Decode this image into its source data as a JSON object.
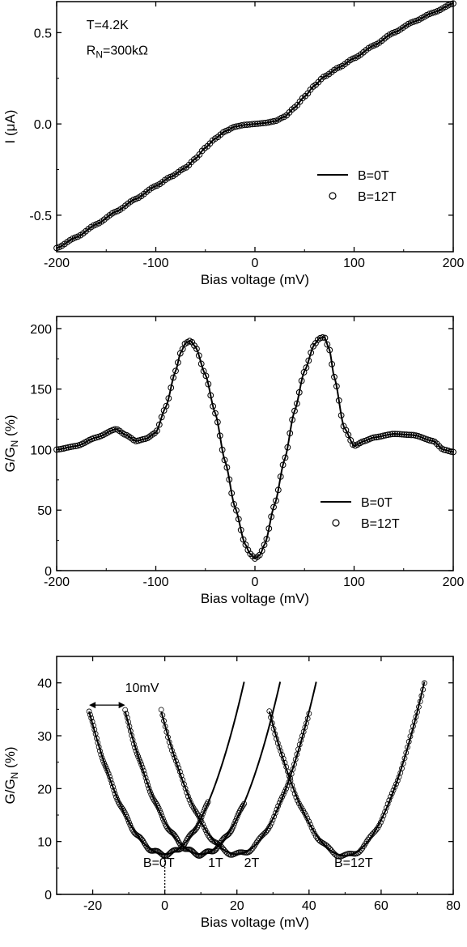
{
  "chart_data": [
    {
      "type": "line",
      "xlabel": "Bias voltage (mV)",
      "ylabel": "I (μA)",
      "xlim": [
        -200,
        200
      ],
      "ylim": [
        -0.7,
        0.67
      ],
      "xticks": [
        -200,
        -100,
        0,
        100,
        200
      ],
      "xtick_labels": [
        "-200",
        "-100",
        "0",
        "100",
        "200"
      ],
      "yticks": [
        -0.5,
        0.0,
        0.5
      ],
      "ytick_labels": [
        "-0.5",
        "0.0",
        "0.5"
      ],
      "annotations": [
        {
          "text": "T=4.2K",
          "x": -170,
          "y": 0.52
        },
        {
          "text_main": "R",
          "text_sub": "N",
          "text_rest": "=300kΩ",
          "x": -170,
          "y": 0.38
        }
      ],
      "legend_position": "lower-right",
      "legend": [
        {
          "label": "B=0T",
          "style": "line"
        },
        {
          "label": "B=12T",
          "style": "marker"
        }
      ],
      "series": [
        {
          "name": "B=0T",
          "style": "line",
          "x": [
            -200,
            -180,
            -160,
            -140,
            -120,
            -100,
            -85,
            -70,
            -60,
            -50,
            -40,
            -30,
            -20,
            -10,
            0,
            10,
            20,
            30,
            40,
            50,
            60,
            70,
            85,
            100,
            120,
            140,
            160,
            180,
            200
          ],
          "y": [
            -0.68,
            -0.62,
            -0.55,
            -0.48,
            -0.41,
            -0.34,
            -0.29,
            -0.24,
            -0.19,
            -0.13,
            -0.08,
            -0.04,
            -0.015,
            -0.005,
            0.0,
            0.005,
            0.015,
            0.04,
            0.09,
            0.15,
            0.21,
            0.26,
            0.31,
            0.36,
            0.43,
            0.5,
            0.56,
            0.61,
            0.66
          ]
        },
        {
          "name": "B=12T",
          "style": "marker",
          "x": [
            -200,
            -180,
            -160,
            -140,
            -120,
            -100,
            -85,
            -70,
            -60,
            -50,
            -40,
            -30,
            -20,
            -10,
            0,
            10,
            20,
            30,
            40,
            50,
            60,
            70,
            85,
            100,
            120,
            140,
            160,
            180,
            200
          ],
          "y": [
            -0.68,
            -0.62,
            -0.55,
            -0.48,
            -0.41,
            -0.34,
            -0.29,
            -0.24,
            -0.19,
            -0.13,
            -0.08,
            -0.04,
            -0.015,
            -0.005,
            0.0,
            0.005,
            0.015,
            0.04,
            0.09,
            0.15,
            0.21,
            0.26,
            0.31,
            0.36,
            0.43,
            0.5,
            0.56,
            0.61,
            0.66
          ]
        }
      ]
    },
    {
      "type": "line",
      "xlabel": "Bias voltage (mV)",
      "ylabel_main": "G/G",
      "ylabel_sub": "N",
      "ylabel_rest": " (%)",
      "xlim": [
        -200,
        200
      ],
      "ylim": [
        0,
        210
      ],
      "xticks": [
        -200,
        -100,
        0,
        100,
        200
      ],
      "xtick_labels": [
        "-200",
        "-100",
        "0",
        "100",
        "200"
      ],
      "yticks": [
        0,
        50,
        100,
        150,
        200
      ],
      "ytick_labels": [
        "0",
        "50",
        "100",
        "150",
        "200"
      ],
      "legend_position": "lower-right",
      "legend": [
        {
          "label": "B=0T",
          "style": "line"
        },
        {
          "label": "B=12T",
          "style": "marker"
        }
      ],
      "series": [
        {
          "name": "B=0T",
          "style": "line",
          "x": [
            -200,
            -180,
            -160,
            -140,
            -130,
            -120,
            -110,
            -100,
            -90,
            -80,
            -75,
            -70,
            -65,
            -60,
            -50,
            -40,
            -30,
            -20,
            -10,
            -5,
            0,
            5,
            10,
            20,
            30,
            40,
            50,
            60,
            65,
            70,
            75,
            80,
            90,
            100,
            110,
            120,
            140,
            160,
            180,
            190,
            200
          ],
          "y": [
            100,
            103,
            110,
            117,
            112,
            107,
            109,
            114,
            135,
            165,
            180,
            188,
            190,
            185,
            162,
            130,
            90,
            52,
            22,
            14,
            10,
            13,
            22,
            55,
            92,
            132,
            165,
            187,
            192,
            193,
            183,
            160,
            118,
            103,
            107,
            110,
            113,
            112,
            107,
            100,
            98
          ]
        },
        {
          "name": "B=12T",
          "style": "marker",
          "x": [
            -200,
            -180,
            -160,
            -140,
            -130,
            -120,
            -110,
            -100,
            -90,
            -80,
            -75,
            -70,
            -65,
            -60,
            -50,
            -40,
            -30,
            -20,
            -10,
            -5,
            0,
            5,
            10,
            20,
            30,
            40,
            50,
            60,
            65,
            70,
            75,
            80,
            90,
            100,
            110,
            120,
            140,
            160,
            180,
            190,
            200
          ],
          "y": [
            100,
            103,
            110,
            117,
            112,
            107,
            109,
            114,
            135,
            165,
            180,
            188,
            190,
            185,
            162,
            130,
            90,
            52,
            22,
            14,
            10,
            13,
            22,
            55,
            92,
            132,
            165,
            187,
            192,
            193,
            183,
            160,
            118,
            103,
            107,
            110,
            113,
            112,
            107,
            100,
            98
          ]
        }
      ]
    },
    {
      "type": "line",
      "xlabel": "Bias voltage (mV)",
      "ylabel_main": "G/G",
      "ylabel_sub": "N",
      "ylabel_rest": " (%)",
      "xlim": [
        -30,
        80
      ],
      "ylim": [
        0,
        45
      ],
      "xticks": [
        -20,
        0,
        20,
        40,
        60,
        80
      ],
      "xtick_labels": [
        "-20",
        "0",
        "20",
        "40",
        "60",
        "80"
      ],
      "yticks": [
        0,
        10,
        20,
        30,
        40
      ],
      "ytick_labels": [
        "0",
        "10",
        "20",
        "30",
        "40"
      ],
      "annotations": [
        {
          "text": "10mV",
          "x": -11,
          "y": 38.3
        },
        {
          "text": "B=0T",
          "x": -6,
          "y": 5.2
        },
        {
          "text": "1T",
          "x": 12,
          "y": 5.2
        },
        {
          "text": "2T",
          "x": 22,
          "y": 5.2
        },
        {
          "text": "B=12T",
          "x": 47,
          "y": 5.2
        }
      ],
      "arrow": {
        "x_from": -21,
        "x_to": -11,
        "y": 35.8
      },
      "marker_line": {
        "x": 0,
        "y_from": 0,
        "y_to": 7.6
      },
      "curves": [
        {
          "label": "B=0T",
          "x_min": 0,
          "x_max": 22,
          "y_min": 7.6,
          "y_start": 34.6,
          "y_end": 40.2,
          "x_start": -21,
          "fit_x_end": 22,
          "data_x_end": 12
        },
        {
          "label": "1T",
          "x_min": 10,
          "x_max": 32,
          "y_min": 7.6,
          "y_start": 34.6,
          "y_end": 40.2,
          "x_start": -11,
          "fit_x_end": 32,
          "data_x_end": 22
        },
        {
          "label": "2T",
          "x_min": 20,
          "x_max": 42,
          "y_min": 7.6,
          "y_start": 34.6,
          "y_end": 40.2,
          "x_start": -1,
          "fit_x_end": 42,
          "data_x_end": 40
        },
        {
          "label": "B=12T",
          "x_min": 50,
          "x_max": 72,
          "y_min": 7.3,
          "y_start": 34.6,
          "y_end": 40.2,
          "x_start": 29,
          "fit_x_end": 72,
          "data_x_end": 72
        }
      ]
    }
  ]
}
